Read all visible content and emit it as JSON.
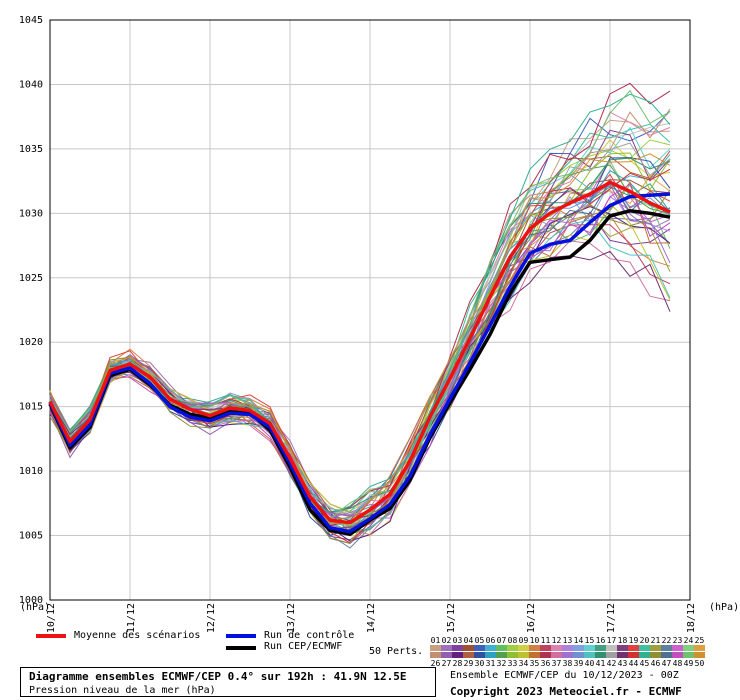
{
  "chart_data": {
    "type": "line",
    "y_unit_left": "(hPa)",
    "y_unit_right": "(hPa)",
    "ylim": [
      1000,
      1045
    ],
    "yticks": [
      "1000",
      "1005",
      "1010",
      "1015",
      "1020",
      "1025",
      "1030",
      "1035",
      "1040",
      "1045"
    ],
    "x_ticks": [
      "10/12",
      "11/12",
      "12/12",
      "13/12",
      "14/12",
      "15/12",
      "16/12",
      "17/12",
      "18/12"
    ],
    "grid": true,
    "x_points_per_day": 4,
    "mean": [
      1015.4,
      1012.3,
      1014.0,
      1017.8,
      1018.3,
      1017.3,
      1015.6,
      1014.8,
      1014.3,
      1014.9,
      1014.7,
      1013.7,
      1011.0,
      1008.0,
      1006.2,
      1006.0,
      1007.0,
      1008.2,
      1010.8,
      1014.2,
      1017.2,
      1020.3,
      1023.5,
      1026.6,
      1028.8,
      1030.0,
      1030.8,
      1031.5,
      1032.4,
      1031.7,
      1030.8,
      1030.1
    ],
    "control": [
      1015.3,
      1012.0,
      1013.6,
      1017.6,
      1018.0,
      1016.8,
      1015.0,
      1014.2,
      1013.9,
      1014.5,
      1014.4,
      1013.4,
      1010.6,
      1007.5,
      1005.6,
      1005.3,
      1006.3,
      1007.4,
      1009.6,
      1012.8,
      1015.6,
      1018.4,
      1021.3,
      1024.3,
      1026.9,
      1027.6,
      1027.9,
      1029.3,
      1030.6,
      1031.3,
      1031.4,
      1031.5
    ],
    "hres": [
      1015.2,
      1011.8,
      1013.4,
      1017.4,
      1017.9,
      1016.7,
      1015.1,
      1014.4,
      1014.1,
      1014.6,
      1014.5,
      1013.2,
      1010.3,
      1007.0,
      1005.4,
      1005.1,
      1006.2,
      1007.1,
      1009.3,
      1012.6,
      1015.3,
      1017.9,
      1020.6,
      1023.8,
      1026.2,
      1026.4,
      1026.6,
      1027.9,
      1029.8,
      1030.2,
      1030.0,
      1029.7
    ],
    "series_labels": {
      "mean": "Moyenne des scénarios",
      "control": "Run de contrôle",
      "hres": "Run CEP/ECMWF"
    },
    "perturbation_count_label": "50 Perts.",
    "perturbation_numbers_row1": [
      "01",
      "02",
      "03",
      "04",
      "05",
      "06",
      "07",
      "08",
      "09",
      "10",
      "11",
      "12",
      "13",
      "14",
      "15",
      "16",
      "17",
      "18",
      "19",
      "20",
      "21",
      "22",
      "23",
      "24",
      "25"
    ],
    "perturbation_numbers_row2": [
      "26",
      "27",
      "28",
      "29",
      "30",
      "31",
      "32",
      "33",
      "34",
      "35",
      "36",
      "37",
      "38",
      "39",
      "40",
      "41",
      "42",
      "43",
      "44",
      "45",
      "46",
      "47",
      "48",
      "49",
      "50"
    ],
    "perturbation_colors": [
      "#c8a080",
      "#a070c0",
      "#8040a0",
      "#a05030",
      "#4060c0",
      "#40b0d0",
      "#60c060",
      "#a0d040",
      "#d0d040",
      "#d08040",
      "#c04060",
      "#e080b0",
      "#b080e0",
      "#80a0e0",
      "#60d0d0",
      "#40a080",
      "#c0c0c0",
      "#804080",
      "#e04040",
      "#40c0a0",
      "#a0a040",
      "#6080a0",
      "#d060d0",
      "#80d080",
      "#e0a040",
      "#c09070",
      "#9060b0",
      "#602080",
      "#b06040",
      "#3050a0",
      "#30a0c0",
      "#50a050",
      "#90c030",
      "#c0c030",
      "#c07030",
      "#b03050",
      "#d070a0",
      "#a070d0",
      "#7090d0",
      "#50c0c0",
      "#309070",
      "#a0a0a0",
      "#703070",
      "#d03030",
      "#30b090",
      "#909030",
      "#507090",
      "#c050c0",
      "#70c070",
      "#d09030"
    ],
    "mean_color": "#ee1111",
    "control_color": "#0010dd",
    "hres_color": "#000000"
  },
  "footer": {
    "title": "Diagramme ensembles ECMWF/CEP 0.4° sur 192h : 41.9N 12.5E",
    "subtitle": "Pression niveau de la mer (hPa)",
    "run_info": "Ensemble ECMWF/CEP du 10/12/2023 - 00Z",
    "copyright": "Copyright 2023 Meteociel.fr - ECMWF"
  }
}
